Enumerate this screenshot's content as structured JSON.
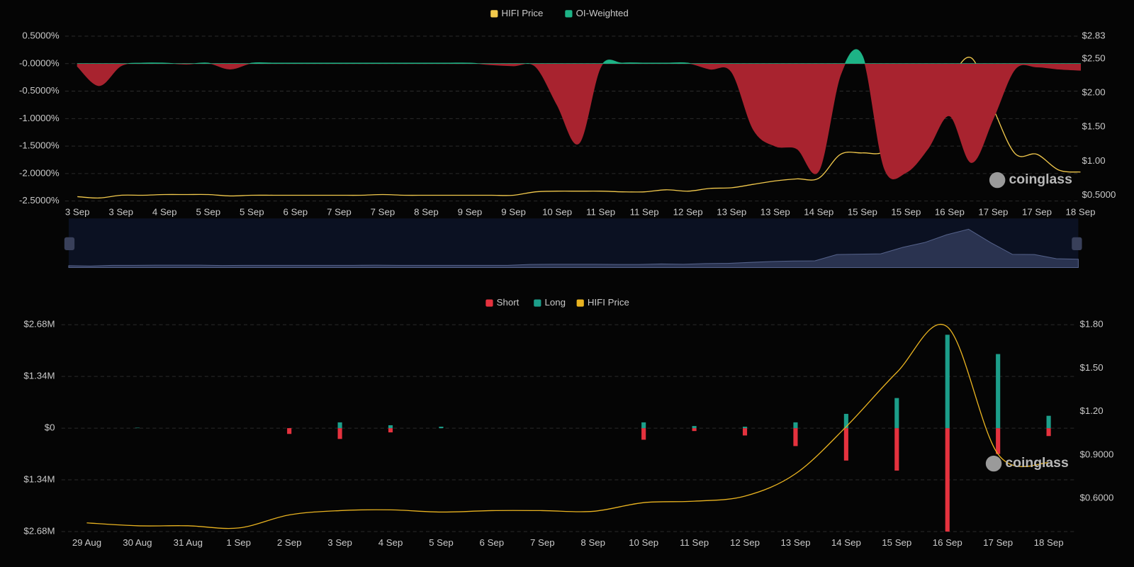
{
  "chart_data": [
    {
      "type": "area",
      "categories": [
        "3 Sep",
        null,
        "3 Sep",
        null,
        "4 Sep",
        null,
        "5 Sep",
        null,
        "5 Sep",
        null,
        "6 Sep",
        null,
        "7 Sep",
        null,
        "7 Sep",
        null,
        "8 Sep",
        null,
        "9 Sep",
        null,
        "9 Sep",
        null,
        "10 Sep",
        null,
        "11 Sep",
        null,
        "11 Sep",
        null,
        "12 Sep",
        null,
        "13 Sep",
        null,
        "13 Sep",
        null,
        "14 Sep",
        null,
        "15 Sep",
        null,
        "15 Sep",
        null,
        "16 Sep",
        null,
        "17 Sep",
        null,
        "17 Sep",
        null,
        "18 Sep"
      ],
      "series": [
        {
          "name": "HIFI Price",
          "color": "#f2c94c",
          "axis": "y2",
          "values": [
            0.48,
            0.46,
            0.5,
            0.5,
            0.51,
            0.51,
            0.51,
            0.49,
            0.5,
            0.5,
            0.5,
            0.5,
            0.5,
            0.5,
            0.51,
            0.5,
            0.5,
            0.5,
            0.5,
            0.5,
            0.5,
            0.55,
            0.56,
            0.56,
            0.56,
            0.55,
            0.55,
            0.58,
            0.56,
            0.6,
            0.61,
            0.66,
            0.71,
            0.74,
            0.75,
            1.1,
            1.12,
            1.14,
            1.5,
            1.77,
            2.2,
            2.51,
            1.77,
            1.11,
            1.1,
            0.87,
            0.84
          ]
        },
        {
          "name": "OI-Weighted",
          "color": "#1db386",
          "negative_color": "#a8232f",
          "values": [
            -0.05,
            -0.4,
            -0.04,
            0.01,
            0.01,
            -0.01,
            0.01,
            -0.1,
            0.01,
            0.01,
            0.01,
            0.01,
            0.01,
            0.01,
            0.01,
            0.01,
            0.01,
            0.01,
            0.01,
            -0.02,
            -0.04,
            -0.05,
            -0.75,
            -1.45,
            -0.06,
            0.01,
            0.01,
            0.01,
            0.01,
            -0.1,
            -0.15,
            -1.2,
            -1.5,
            -1.55,
            -1.95,
            -0.2,
            0.14,
            -1.9,
            -1.98,
            -1.55,
            -0.95,
            -1.8,
            -1.0,
            -0.1,
            -0.06,
            -0.1,
            -0.12
          ]
        }
      ],
      "ylim": [
        -2.5,
        0.5
      ],
      "yticks": [
        {
          "value": 0.5,
          "label": "0.5000%"
        },
        {
          "value": 0,
          "label": "-0.0000%"
        },
        {
          "value": -0.5,
          "label": "-0.5000%"
        },
        {
          "value": -1,
          "label": "-1.0000%"
        },
        {
          "value": -1.5,
          "label": "-1.5000%"
        },
        {
          "value": -2,
          "label": "-2.0000%"
        },
        {
          "value": -2.5,
          "label": "-2.5000%"
        }
      ],
      "y2lim": [
        0.415,
        2.83
      ],
      "y2ticks": [
        {
          "value": 2.83,
          "label": "$2.83"
        },
        {
          "value": 2.5,
          "label": "$2.50"
        },
        {
          "value": 2,
          "label": "$2.00"
        },
        {
          "value": 1.5,
          "label": "$1.50"
        },
        {
          "value": 1,
          "label": "$1.00"
        },
        {
          "value": 0.5,
          "label": "$0.5000"
        }
      ],
      "grid": true,
      "legend": "top",
      "watermark": "coinglass"
    },
    {
      "type": "bar",
      "categories": [
        "29 Aug",
        "30 Aug",
        "31 Aug",
        "1 Sep",
        "2 Sep",
        "3 Sep",
        "4 Sep",
        "5 Sep",
        "6 Sep",
        "7 Sep",
        "8 Sep",
        "10 Sep",
        "11 Sep",
        "12 Sep",
        "13 Sep",
        "14 Sep",
        "15 Sep",
        "16 Sep",
        "17 Sep",
        "18 Sep"
      ],
      "series": [
        {
          "name": "Short",
          "color": "#e5323e",
          "values": [
            0,
            0,
            0,
            0,
            -150000,
            -280000,
            -110000,
            0,
            0,
            0,
            0,
            -300000,
            -75000,
            -190000,
            -465000,
            -840000,
            -1100000,
            -2680000,
            -670000,
            -205000
          ]
        },
        {
          "name": "Long",
          "color": "#1c9e8a",
          "values": [
            0,
            10000,
            0,
            0,
            0,
            150000,
            75000,
            37000,
            0,
            0,
            0,
            150000,
            55000,
            37000,
            150000,
            370000,
            780000,
            2420000,
            1920000,
            320000
          ]
        },
        {
          "name": "HIFI Price",
          "color": "#e9b320",
          "axis": "y2",
          "type": "line",
          "values": [
            0.43,
            0.41,
            0.41,
            0.395,
            0.485,
            0.515,
            0.52,
            0.505,
            0.515,
            0.515,
            0.51,
            0.57,
            0.58,
            0.615,
            0.77,
            1.095,
            1.47,
            1.785,
            0.905,
            0.845
          ]
        }
      ],
      "ylim": [
        -2680000,
        2680000
      ],
      "yticks": [
        {
          "value": 2680000,
          "label": "$2.68M"
        },
        {
          "value": 1340000,
          "label": "$1.34M"
        },
        {
          "value": 0,
          "label": "$0"
        },
        {
          "value": -1340000,
          "label": "$1.34M"
        },
        {
          "value": -2680000,
          "label": "$2.68M"
        }
      ],
      "y2lim": [
        0.37,
        1.8
      ],
      "y2ticks": [
        {
          "value": 1.8,
          "label": "$1.80"
        },
        {
          "value": 1.5,
          "label": "$1.50"
        },
        {
          "value": 1.2,
          "label": "$1.20"
        },
        {
          "value": 0.9,
          "label": "$0.9000"
        },
        {
          "value": 0.6,
          "label": "$0.6000"
        }
      ],
      "grid": true,
      "legend": "top",
      "watermark": "coinglass"
    }
  ]
}
